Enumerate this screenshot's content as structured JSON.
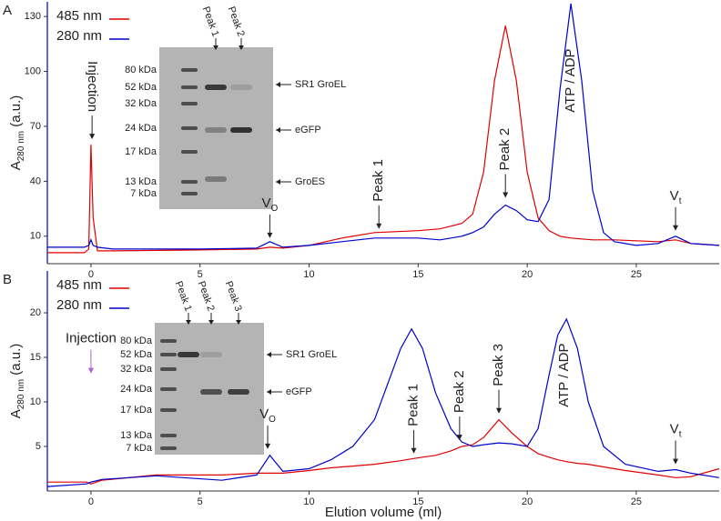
{
  "chart_data": [
    {
      "type": "line",
      "panel_label": "A",
      "y_label": {
        "main": "A",
        "sub": "280 nm",
        "rest": " (a.u.)"
      },
      "xlim": [
        -2,
        28.8
      ],
      "ylim": [
        -5,
        138
      ],
      "xticks": [
        0,
        5,
        10,
        15,
        20,
        25
      ],
      "yticks": [
        10,
        40,
        70,
        100,
        130
      ],
      "x": [
        -2,
        -0.3,
        -0.1,
        0,
        0.1,
        0.3,
        1,
        5,
        7.6,
        8.2,
        8.8,
        10,
        11.5,
        13,
        15,
        16,
        17,
        17.5,
        18,
        18.5,
        19,
        19.5,
        20,
        20.5,
        21,
        21.5,
        22,
        22.5,
        23,
        23.5,
        24,
        25,
        26,
        26.8,
        27.5,
        28.8
      ],
      "series": [
        {
          "name": "485 nm",
          "color": "#e00000",
          "values": [
            1,
            1,
            3,
            60,
            20,
            2,
            2,
            2.5,
            3,
            4,
            3.5,
            5,
            9,
            12,
            13,
            14,
            17,
            22,
            45,
            95,
            125,
            95,
            45,
            20,
            13,
            10,
            9,
            8.5,
            8,
            8,
            8,
            7.5,
            7,
            8,
            6,
            5
          ]
        },
        {
          "name": "280 nm",
          "color": "#0000cc",
          "values": [
            4,
            4,
            5,
            8,
            5,
            4,
            3,
            3,
            3.5,
            7,
            4,
            5,
            7,
            9,
            9,
            8,
            10,
            12,
            15,
            22,
            27,
            24,
            19,
            18,
            30,
            90,
            137,
            95,
            35,
            12,
            7,
            5,
            6,
            10,
            6,
            5
          ]
        }
      ],
      "annotations": [
        {
          "text": "Injection",
          "x": 0.05,
          "y": 62,
          "rotate": 90
        },
        {
          "text": "V",
          "sub": "O",
          "x": 8.2,
          "y": 8,
          "rotate": 0
        },
        {
          "text": "Peak 1",
          "x": 13.2,
          "y": 13,
          "rotate": -90
        },
        {
          "text": "Peak 2",
          "x": 19,
          "y": 30,
          "rotate": -90
        },
        {
          "text": "ATP / ADP",
          "x": 22,
          "y": 95,
          "rotate": -90,
          "arrow": false
        },
        {
          "text": "V",
          "sub": "t",
          "x": 26.8,
          "y": 12,
          "rotate": 0
        }
      ],
      "inset": {
        "lanes": [
          "Peak 1",
          "Peak 2"
        ],
        "markers": [
          "80 kDa",
          "52 kDa",
          "32 kDa",
          "24 kDa",
          "17 kDa",
          "13 kDa",
          "7  kDa"
        ],
        "bands": [
          "SR1 GroEL",
          "eGFP",
          "GroES"
        ]
      }
    },
    {
      "type": "line",
      "panel_label": "B",
      "y_label": {
        "main": "A",
        "sub": "280 nm",
        "rest": " (a.u.)"
      },
      "x_label": "Elution volume (ml)",
      "xlim": [
        -2,
        28.8
      ],
      "ylim": [
        0,
        24.7
      ],
      "xticks": [
        0,
        5,
        10,
        15,
        20,
        25
      ],
      "yticks": [
        5,
        10,
        15,
        20
      ],
      "x": [
        -2,
        -0.2,
        0,
        0.5,
        3,
        6,
        7.6,
        8.2,
        8.8,
        10,
        11,
        12,
        13,
        13.6,
        14.2,
        14.7,
        15.2,
        15.8,
        16.5,
        17,
        17.5,
        18,
        18.7,
        19.3,
        20,
        20.5,
        21,
        21.4,
        21.8,
        22.3,
        22.8,
        23.5,
        24.5,
        26,
        26.8,
        27.5,
        28.8
      ],
      "series": [
        {
          "name": "485 nm",
          "color": "#e00000",
          "values": [
            1,
            1,
            0.8,
            1.2,
            1.8,
            1.8,
            2,
            2,
            2,
            2.3,
            2.6,
            2.8,
            3,
            3.2,
            3.4,
            3.6,
            3.8,
            4,
            4.5,
            5,
            5.2,
            6,
            8,
            6.5,
            5,
            4.2,
            3.8,
            3.5,
            3.3,
            3.1,
            3,
            2.7,
            2.3,
            1.8,
            1.5,
            1.6,
            2.5
          ]
        },
        {
          "name": "280 nm",
          "color": "#0000cc",
          "values": [
            0.5,
            0.8,
            1,
            1.3,
            1.7,
            1.2,
            1.8,
            4,
            2.2,
            2.5,
            3.5,
            5,
            8,
            12,
            16,
            18.2,
            16,
            11,
            7,
            5.5,
            5,
            5.2,
            5.4,
            5.3,
            5,
            7,
            13,
            17.5,
            19.3,
            16,
            10,
            5,
            3,
            2.2,
            2.4,
            2,
            1.5
          ]
        }
      ],
      "annotations": [
        {
          "text": "Injection",
          "x": 0,
          "y": 13,
          "rotate": 0,
          "color": "#b060d0"
        },
        {
          "text": "V",
          "sub": "O",
          "x": 8.1,
          "y": 4.5,
          "rotate": 0
        },
        {
          "text": "Peak 1",
          "x": 14.8,
          "y": 4,
          "rotate": -90
        },
        {
          "text": "Peak 2",
          "x": 16.9,
          "y": 5.5,
          "rotate": -90
        },
        {
          "text": "Peak 3",
          "x": 18.7,
          "y": 8.5,
          "rotate": -90
        },
        {
          "text": "ATP / ADP",
          "x": 21.7,
          "y": 13,
          "rotate": -90,
          "arrow": false
        },
        {
          "text": "V",
          "sub": "t",
          "x": 26.8,
          "y": 2.8,
          "rotate": 0
        }
      ],
      "inset": {
        "lanes": [
          "Peak 1",
          "Peak 2",
          "Peak 3"
        ],
        "markers": [
          "80 kDa",
          "52 kDa",
          "32 kDa",
          "24 kDa",
          "17 kDa",
          "13 kDa",
          "7  kDa"
        ],
        "bands": [
          "SR1 GroEL",
          "eGFP"
        ]
      }
    }
  ]
}
